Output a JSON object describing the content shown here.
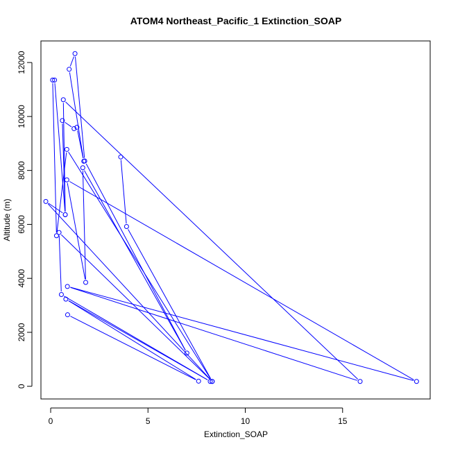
{
  "chart_data": {
    "type": "line",
    "title": "ATOM4 Northeast_Pacific_1 Extinction_SOAP",
    "xlabel": "Extinction_SOAP",
    "ylabel": "Altitude (m)",
    "xlim": [
      -0.5,
      19.5
    ],
    "ylim": [
      -470,
      12800
    ],
    "x_ticks": [
      0,
      5,
      10,
      15
    ],
    "y_ticks": [
      0,
      2000,
      4000,
      6000,
      8000,
      10000,
      12000
    ],
    "grid": false,
    "line_color": "#0000ff",
    "marker": "open-circle",
    "series": [
      {
        "points": [
          {
            "x": 0.87,
            "y": 2650
          },
          {
            "x": 7.6,
            "y": 190
          },
          {
            "x": 0.78,
            "y": 3230
          },
          {
            "x": 8.2,
            "y": 180
          },
          {
            "x": 0.55,
            "y": 3400
          },
          {
            "x": 0.43,
            "y": 5700
          },
          {
            "x": 8.3,
            "y": 180
          },
          {
            "x": 0.83,
            "y": 8780
          },
          {
            "x": 0.3,
            "y": 5580
          },
          {
            "x": 0.1,
            "y": 11350
          },
          {
            "x": 0.2,
            "y": 11350
          },
          {
            "x": 0.75,
            "y": 6360
          },
          {
            "x": 0.6,
            "y": 9850
          },
          {
            "x": 1.2,
            "y": 9550
          },
          {
            "x": 1.35,
            "y": 9600
          },
          {
            "x": 1.7,
            "y": 8340
          },
          {
            "x": 0.95,
            "y": 11750
          },
          {
            "x": 1.25,
            "y": 12330
          },
          {
            "x": 1.75,
            "y": 8350
          },
          {
            "x": 7.0,
            "y": 1230
          },
          {
            "x": 1.65,
            "y": 8100
          },
          {
            "x": 1.8,
            "y": 3850
          },
          {
            "x": 0.83,
            "y": 7650
          },
          {
            "x": 18.8,
            "y": 180
          },
          {
            "x": 0.86,
            "y": 3700
          },
          {
            "x": 15.9,
            "y": 180
          },
          {
            "x": 0.65,
            "y": 10620
          },
          {
            "x": 0.75,
            "y": 6360
          },
          {
            "x": -0.25,
            "y": 6850
          },
          {
            "x": 8.3,
            "y": 180
          },
          {
            "x": 3.9,
            "y": 5920
          },
          {
            "x": 3.6,
            "y": 8500
          }
        ]
      }
    ]
  }
}
